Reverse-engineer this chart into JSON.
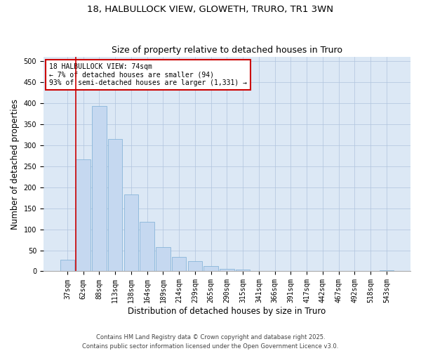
{
  "title_line1": "18, HALBULLOCK VIEW, GLOWETH, TRURO, TR1 3WN",
  "title_line2": "Size of property relative to detached houses in Truro",
  "xlabel": "Distribution of detached houses by size in Truro",
  "ylabel": "Number of detached properties",
  "categories": [
    "37sqm",
    "62sqm",
    "88sqm",
    "113sqm",
    "138sqm",
    "164sqm",
    "189sqm",
    "214sqm",
    "239sqm",
    "265sqm",
    "290sqm",
    "315sqm",
    "341sqm",
    "366sqm",
    "391sqm",
    "417sqm",
    "442sqm",
    "467sqm",
    "492sqm",
    "518sqm",
    "543sqm"
  ],
  "values": [
    28,
    267,
    393,
    315,
    183,
    117,
    58,
    34,
    24,
    13,
    6,
    4,
    1,
    1,
    1,
    0,
    0,
    0,
    0,
    0,
    3
  ],
  "bar_color": "#c5d8f0",
  "bar_edgecolor": "#7aadd4",
  "annotation_text": "18 HALBULLOCK VIEW: 74sqm\n← 7% of detached houses are smaller (94)\n93% of semi-detached houses are larger (1,331) →",
  "annotation_box_edgecolor": "#cc0000",
  "annotation_box_facecolor": "#ffffff",
  "red_line_color": "#cc0000",
  "ylim": [
    0,
    510
  ],
  "yticks": [
    0,
    50,
    100,
    150,
    200,
    250,
    300,
    350,
    400,
    450,
    500
  ],
  "background_color": "#ffffff",
  "ax_background_color": "#dce8f5",
  "grid_color": "#b0c4de",
  "footer_text": "Contains HM Land Registry data © Crown copyright and database right 2025.\nContains public sector information licensed under the Open Government Licence v3.0.",
  "title_fontsize": 9.5,
  "subtitle_fontsize": 9,
  "axis_label_fontsize": 8.5,
  "tick_fontsize": 7,
  "annotation_fontsize": 7,
  "footer_fontsize": 6
}
